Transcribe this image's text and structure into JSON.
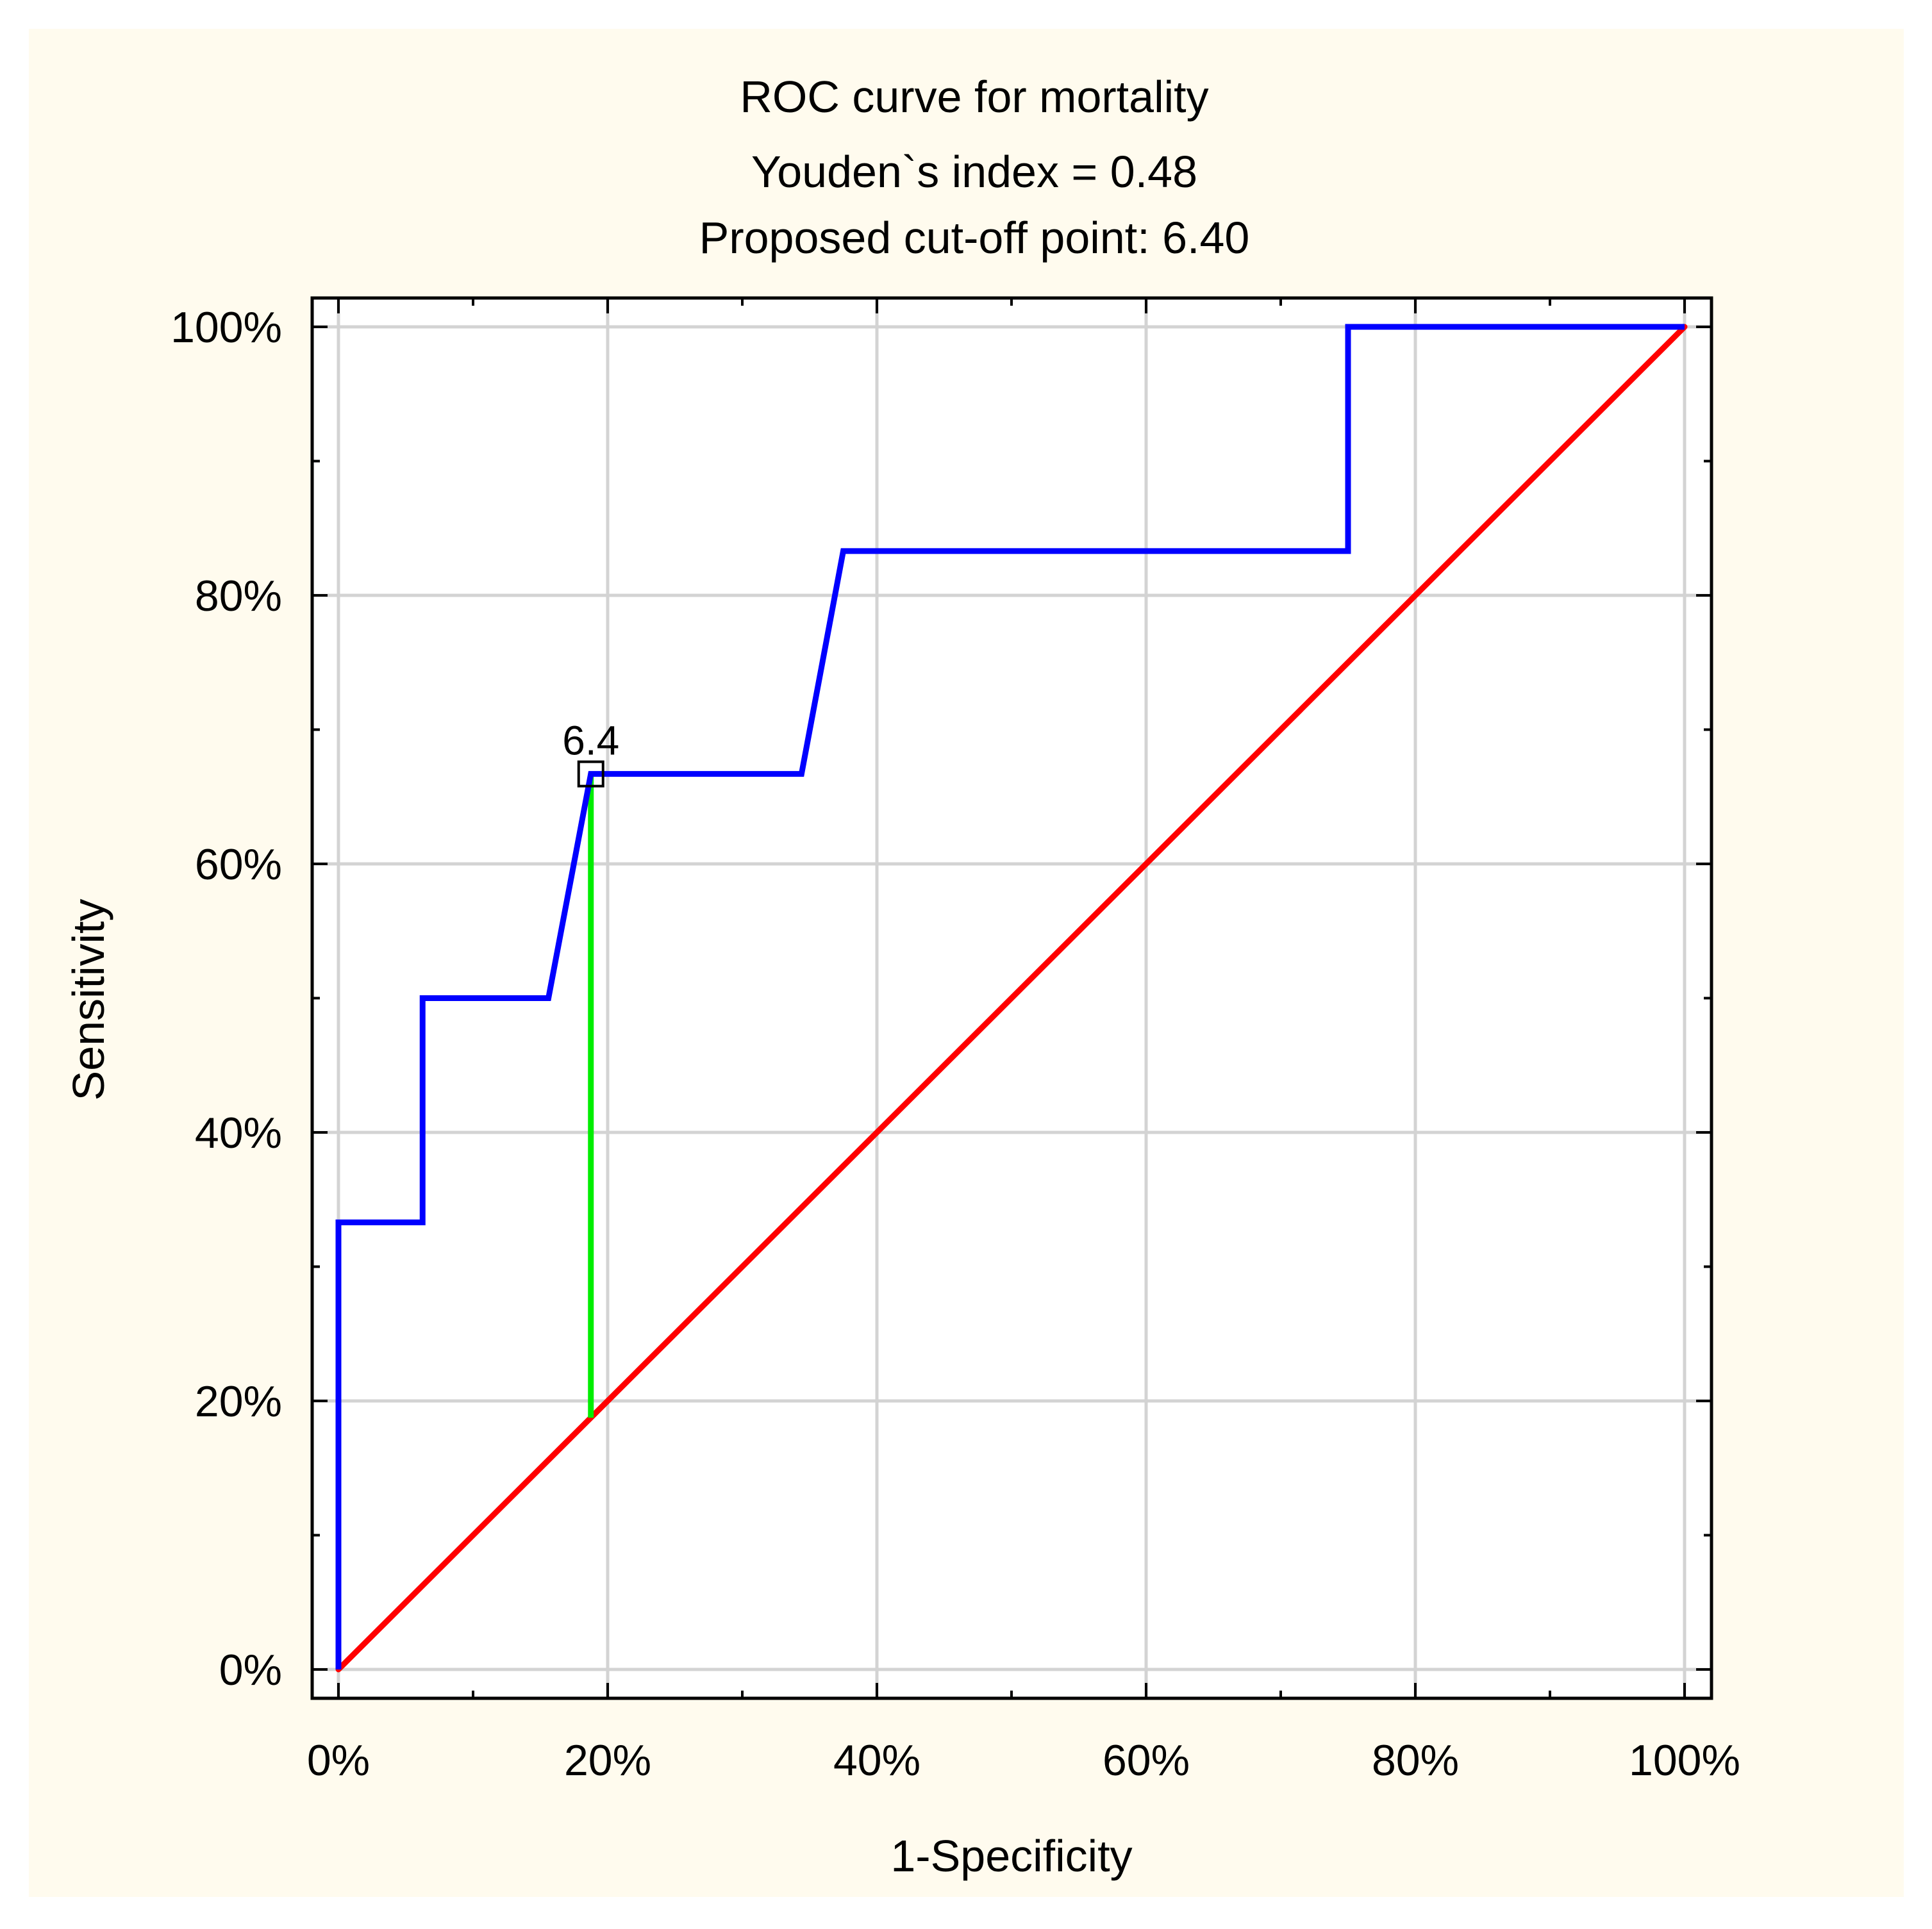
{
  "chart_data": {
    "type": "line",
    "title": "ROC curve for mortality",
    "subtitle_lines": [
      "Youden`s index = 0.48",
      "Proposed cut-off point: 6.40"
    ],
    "xlabel": "1-Specificity",
    "ylabel": "Sensitivity",
    "xlim": [
      0,
      1
    ],
    "ylim": [
      0,
      1
    ],
    "x_ticks": [
      {
        "value": 0,
        "label": "0%"
      },
      {
        "value": 0.2,
        "label": "20%"
      },
      {
        "value": 0.4,
        "label": "40%"
      },
      {
        "value": 0.6,
        "label": "60%"
      },
      {
        "value": 0.8,
        "label": "80%"
      },
      {
        "value": 1.0,
        "label": "100%"
      }
    ],
    "y_ticks": [
      {
        "value": 0,
        "label": "0%"
      },
      {
        "value": 0.2,
        "label": "20%"
      },
      {
        "value": 0.4,
        "label": "40%"
      },
      {
        "value": 0.6,
        "label": "60%"
      },
      {
        "value": 0.8,
        "label": "80%"
      },
      {
        "value": 1.0,
        "label": "100%"
      }
    ],
    "grid": true,
    "series": [
      {
        "name": "ROC curve",
        "color": "#0000ff",
        "x": [
          0,
          0,
          0.0625,
          0.0625,
          0.156,
          0.1875,
          0.1875,
          0.344,
          0.375,
          0.75,
          0.75,
          1.0
        ],
        "y": [
          0,
          0.333,
          0.333,
          0.5,
          0.5,
          0.667,
          0.667,
          0.667,
          0.833,
          0.833,
          1.0,
          1.0
        ]
      },
      {
        "name": "reference line",
        "color": "#ff0000",
        "x": [
          0,
          1
        ],
        "y": [
          0,
          1
        ]
      }
    ],
    "youden_line": {
      "color": "#00ee00",
      "x": 0.1875,
      "y_from": 0.1875,
      "y_to": 0.667
    },
    "cutoff_point": {
      "label": "6.4",
      "x": 0.1875,
      "y": 0.667
    },
    "background_color": "#fffbee",
    "plot_background_color": "#ffffff"
  }
}
